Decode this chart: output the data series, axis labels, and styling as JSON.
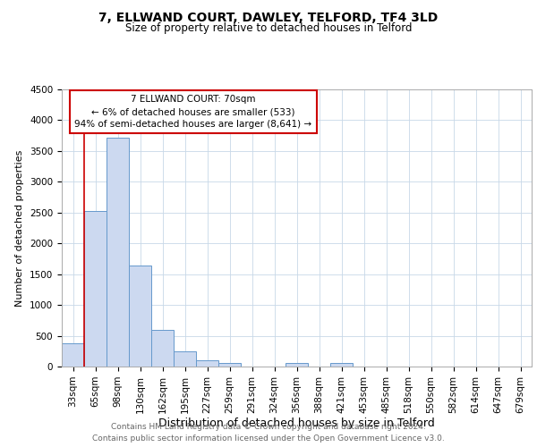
{
  "title": "7, ELLWAND COURT, DAWLEY, TELFORD, TF4 3LD",
  "subtitle": "Size of property relative to detached houses in Telford",
  "xlabel": "Distribution of detached houses by size in Telford",
  "ylabel": "Number of detached properties",
  "footer_line1": "Contains HM Land Registry data © Crown copyright and database right 2024.",
  "footer_line2": "Contains public sector information licensed under the Open Government Licence v3.0.",
  "annotation_title": "7 ELLWAND COURT: 70sqm",
  "annotation_line1": "← 6% of detached houses are smaller (533)",
  "annotation_line2": "94% of semi-detached houses are larger (8,641) →",
  "bar_labels": [
    "33sqm",
    "65sqm",
    "98sqm",
    "130sqm",
    "162sqm",
    "195sqm",
    "227sqm",
    "259sqm",
    "291sqm",
    "324sqm",
    "356sqm",
    "388sqm",
    "421sqm",
    "453sqm",
    "485sqm",
    "518sqm",
    "550sqm",
    "582sqm",
    "614sqm",
    "647sqm",
    "679sqm"
  ],
  "bar_values": [
    380,
    2520,
    3720,
    1640,
    600,
    245,
    100,
    55,
    0,
    0,
    55,
    0,
    55,
    0,
    0,
    0,
    0,
    0,
    0,
    0,
    0
  ],
  "bar_color": "#ccd9f0",
  "bar_edge_color": "#6699cc",
  "property_line_color": "#cc0000",
  "annotation_box_color": "#ffffff",
  "annotation_box_edge": "#cc0000",
  "background_color": "#ffffff",
  "grid_color": "#c8d8e8",
  "ylim": [
    0,
    4500
  ],
  "yticks": [
    0,
    500,
    1000,
    1500,
    2000,
    2500,
    3000,
    3500,
    4000,
    4500
  ],
  "title_fontsize": 10,
  "subtitle_fontsize": 8.5,
  "ylabel_fontsize": 8,
  "xlabel_fontsize": 9,
  "tick_fontsize": 7.5,
  "annot_fontsize": 7.5,
  "footer_fontsize": 6.5,
  "footer_color": "#666666"
}
